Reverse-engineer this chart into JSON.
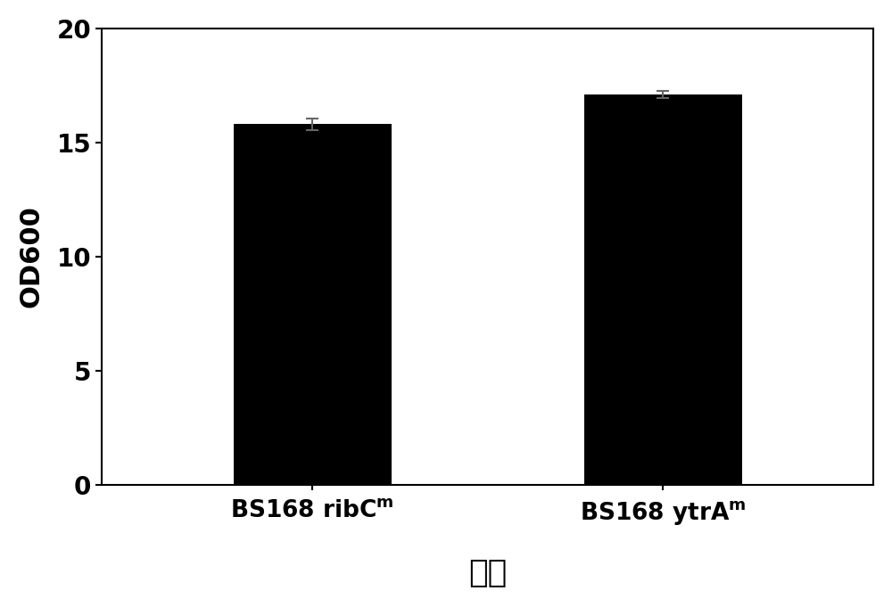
{
  "values": [
    15.8,
    17.1
  ],
  "errors": [
    0.25,
    0.15
  ],
  "bar_color": "#000000",
  "bar_width": 0.45,
  "ylim": [
    0,
    20
  ],
  "yticks": [
    0,
    5,
    10,
    15,
    20
  ],
  "ylabel": "OD600",
  "xlabel": "菌株",
  "ylabel_fontsize": 22,
  "xlabel_fontsize": 26,
  "tick_fontsize": 20,
  "xtick_fontsize": 19,
  "figure_width": 10.0,
  "figure_height": 6.81,
  "dpi": 100,
  "background_color": "#ffffff",
  "x_positions": [
    1,
    2
  ],
  "xlim": [
    0.4,
    2.6
  ],
  "error_capsize": 5,
  "error_linewidth": 1.5,
  "error_color": "#666666",
  "spine_linewidth": 1.5
}
